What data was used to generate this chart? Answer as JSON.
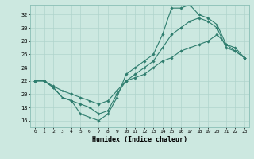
{
  "xlabel": "Humidex (Indice chaleur)",
  "bg_color": "#cce8e0",
  "line_color": "#2e7d6e",
  "grid_color": "#b0d4cc",
  "xlim": [
    -0.5,
    23.5
  ],
  "ylim": [
    15.0,
    33.5
  ],
  "xticks": [
    0,
    1,
    2,
    3,
    4,
    5,
    6,
    7,
    8,
    9,
    10,
    11,
    12,
    13,
    14,
    15,
    16,
    17,
    18,
    19,
    20,
    21,
    22,
    23
  ],
  "yticks": [
    16,
    18,
    20,
    22,
    24,
    26,
    28,
    30,
    32
  ],
  "curve1_x": [
    0,
    1,
    2,
    3,
    4,
    5,
    6,
    7,
    8,
    9,
    10,
    11,
    12,
    13,
    14,
    15,
    16,
    17,
    18,
    19,
    20,
    21,
    22,
    23
  ],
  "curve1_y": [
    22,
    22,
    21,
    19.5,
    19,
    17,
    16.5,
    16,
    17,
    19.5,
    23,
    24,
    25,
    26,
    29,
    33,
    33,
    33.5,
    32,
    31.5,
    30.5,
    27.5,
    26.5,
    25.5
  ],
  "curve2_x": [
    0,
    1,
    2,
    3,
    4,
    5,
    6,
    7,
    8,
    9,
    10,
    11,
    12,
    13,
    14,
    15,
    16,
    17,
    18,
    19,
    20,
    21,
    22,
    23
  ],
  "curve2_y": [
    22,
    22,
    21,
    19.5,
    19,
    18.5,
    18,
    17,
    17.5,
    20,
    22,
    23,
    24,
    25,
    27,
    29,
    30,
    31,
    31.5,
    31,
    30,
    27,
    26.5,
    25.5
  ],
  "curve3_x": [
    0,
    1,
    2,
    3,
    4,
    5,
    6,
    7,
    8,
    9,
    10,
    11,
    12,
    13,
    14,
    15,
    16,
    17,
    18,
    19,
    20,
    21,
    22,
    23
  ],
  "curve3_y": [
    22,
    22,
    21.2,
    20.5,
    20,
    19.5,
    19,
    18.5,
    19,
    20.5,
    22,
    22.5,
    23,
    24,
    25,
    25.5,
    26.5,
    27,
    27.5,
    28,
    29,
    27.5,
    27,
    25.5
  ]
}
